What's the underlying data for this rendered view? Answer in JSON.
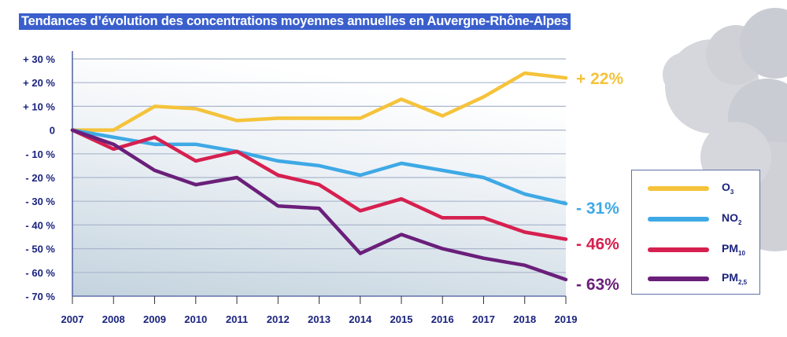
{
  "title": "Tendances d’évolution des concentrations moyennes annuelles en Auvergne-Rhône-Alpes",
  "chart_data": {
    "type": "line",
    "title": "Tendances d’évolution des concentrations moyennes annuelles en Auvergne-Rhône-Alpes",
    "xlabel": "",
    "ylabel": "",
    "x": [
      "2007",
      "2008",
      "2009",
      "2010",
      "2011",
      "2012",
      "2013",
      "2014",
      "2015",
      "2016",
      "2017",
      "2018",
      "2019"
    ],
    "ylim": [
      -70,
      30
    ],
    "yticks": [
      30,
      20,
      10,
      0,
      -10,
      -20,
      -30,
      -40,
      -50,
      -60,
      -70
    ],
    "ytick_labels": [
      "+ 30 %",
      "+ 20 %",
      "+ 10 %",
      "0",
      "- 10 %",
      "- 20 %",
      "- 30 %",
      "- 40 %",
      "- 50 %",
      "- 60 %",
      "- 70 %"
    ],
    "grid": true,
    "legend_position": "right",
    "series": [
      {
        "name": "O3",
        "label_main": "O",
        "label_sub": "3",
        "color": "#f5c33b",
        "values": [
          0,
          0,
          10,
          9,
          4,
          5,
          5,
          5,
          13,
          6,
          14,
          24,
          22
        ],
        "end_label": "+ 22%"
      },
      {
        "name": "NO2",
        "label_main": "NO",
        "label_sub": "2",
        "color": "#3ea9e5",
        "values": [
          0,
          -3,
          -6,
          -6,
          -9,
          -13,
          -15,
          -19,
          -14,
          -17,
          -20,
          -27,
          -31
        ],
        "end_label": "- 31%"
      },
      {
        "name": "PM10",
        "label_main": "PM",
        "label_sub": "10",
        "color": "#d6204f",
        "values": [
          0,
          -8,
          -3,
          -13,
          -9,
          -19,
          -23,
          -34,
          -29,
          -37,
          -37,
          -43,
          -46
        ],
        "end_label": "- 46%"
      },
      {
        "name": "PM2,5",
        "label_main": "PM",
        "label_sub": "2,5",
        "color": "#6a1f7a",
        "values": [
          0,
          -6,
          -17,
          -23,
          -20,
          -32,
          -33,
          -52,
          -44,
          -50,
          -54,
          -57,
          -63
        ],
        "end_label": "- 63%"
      }
    ]
  },
  "colors": {
    "title_bg": "#3a5fcd",
    "axis_text": "#1a237e",
    "cloud": "#d5d7dc"
  }
}
